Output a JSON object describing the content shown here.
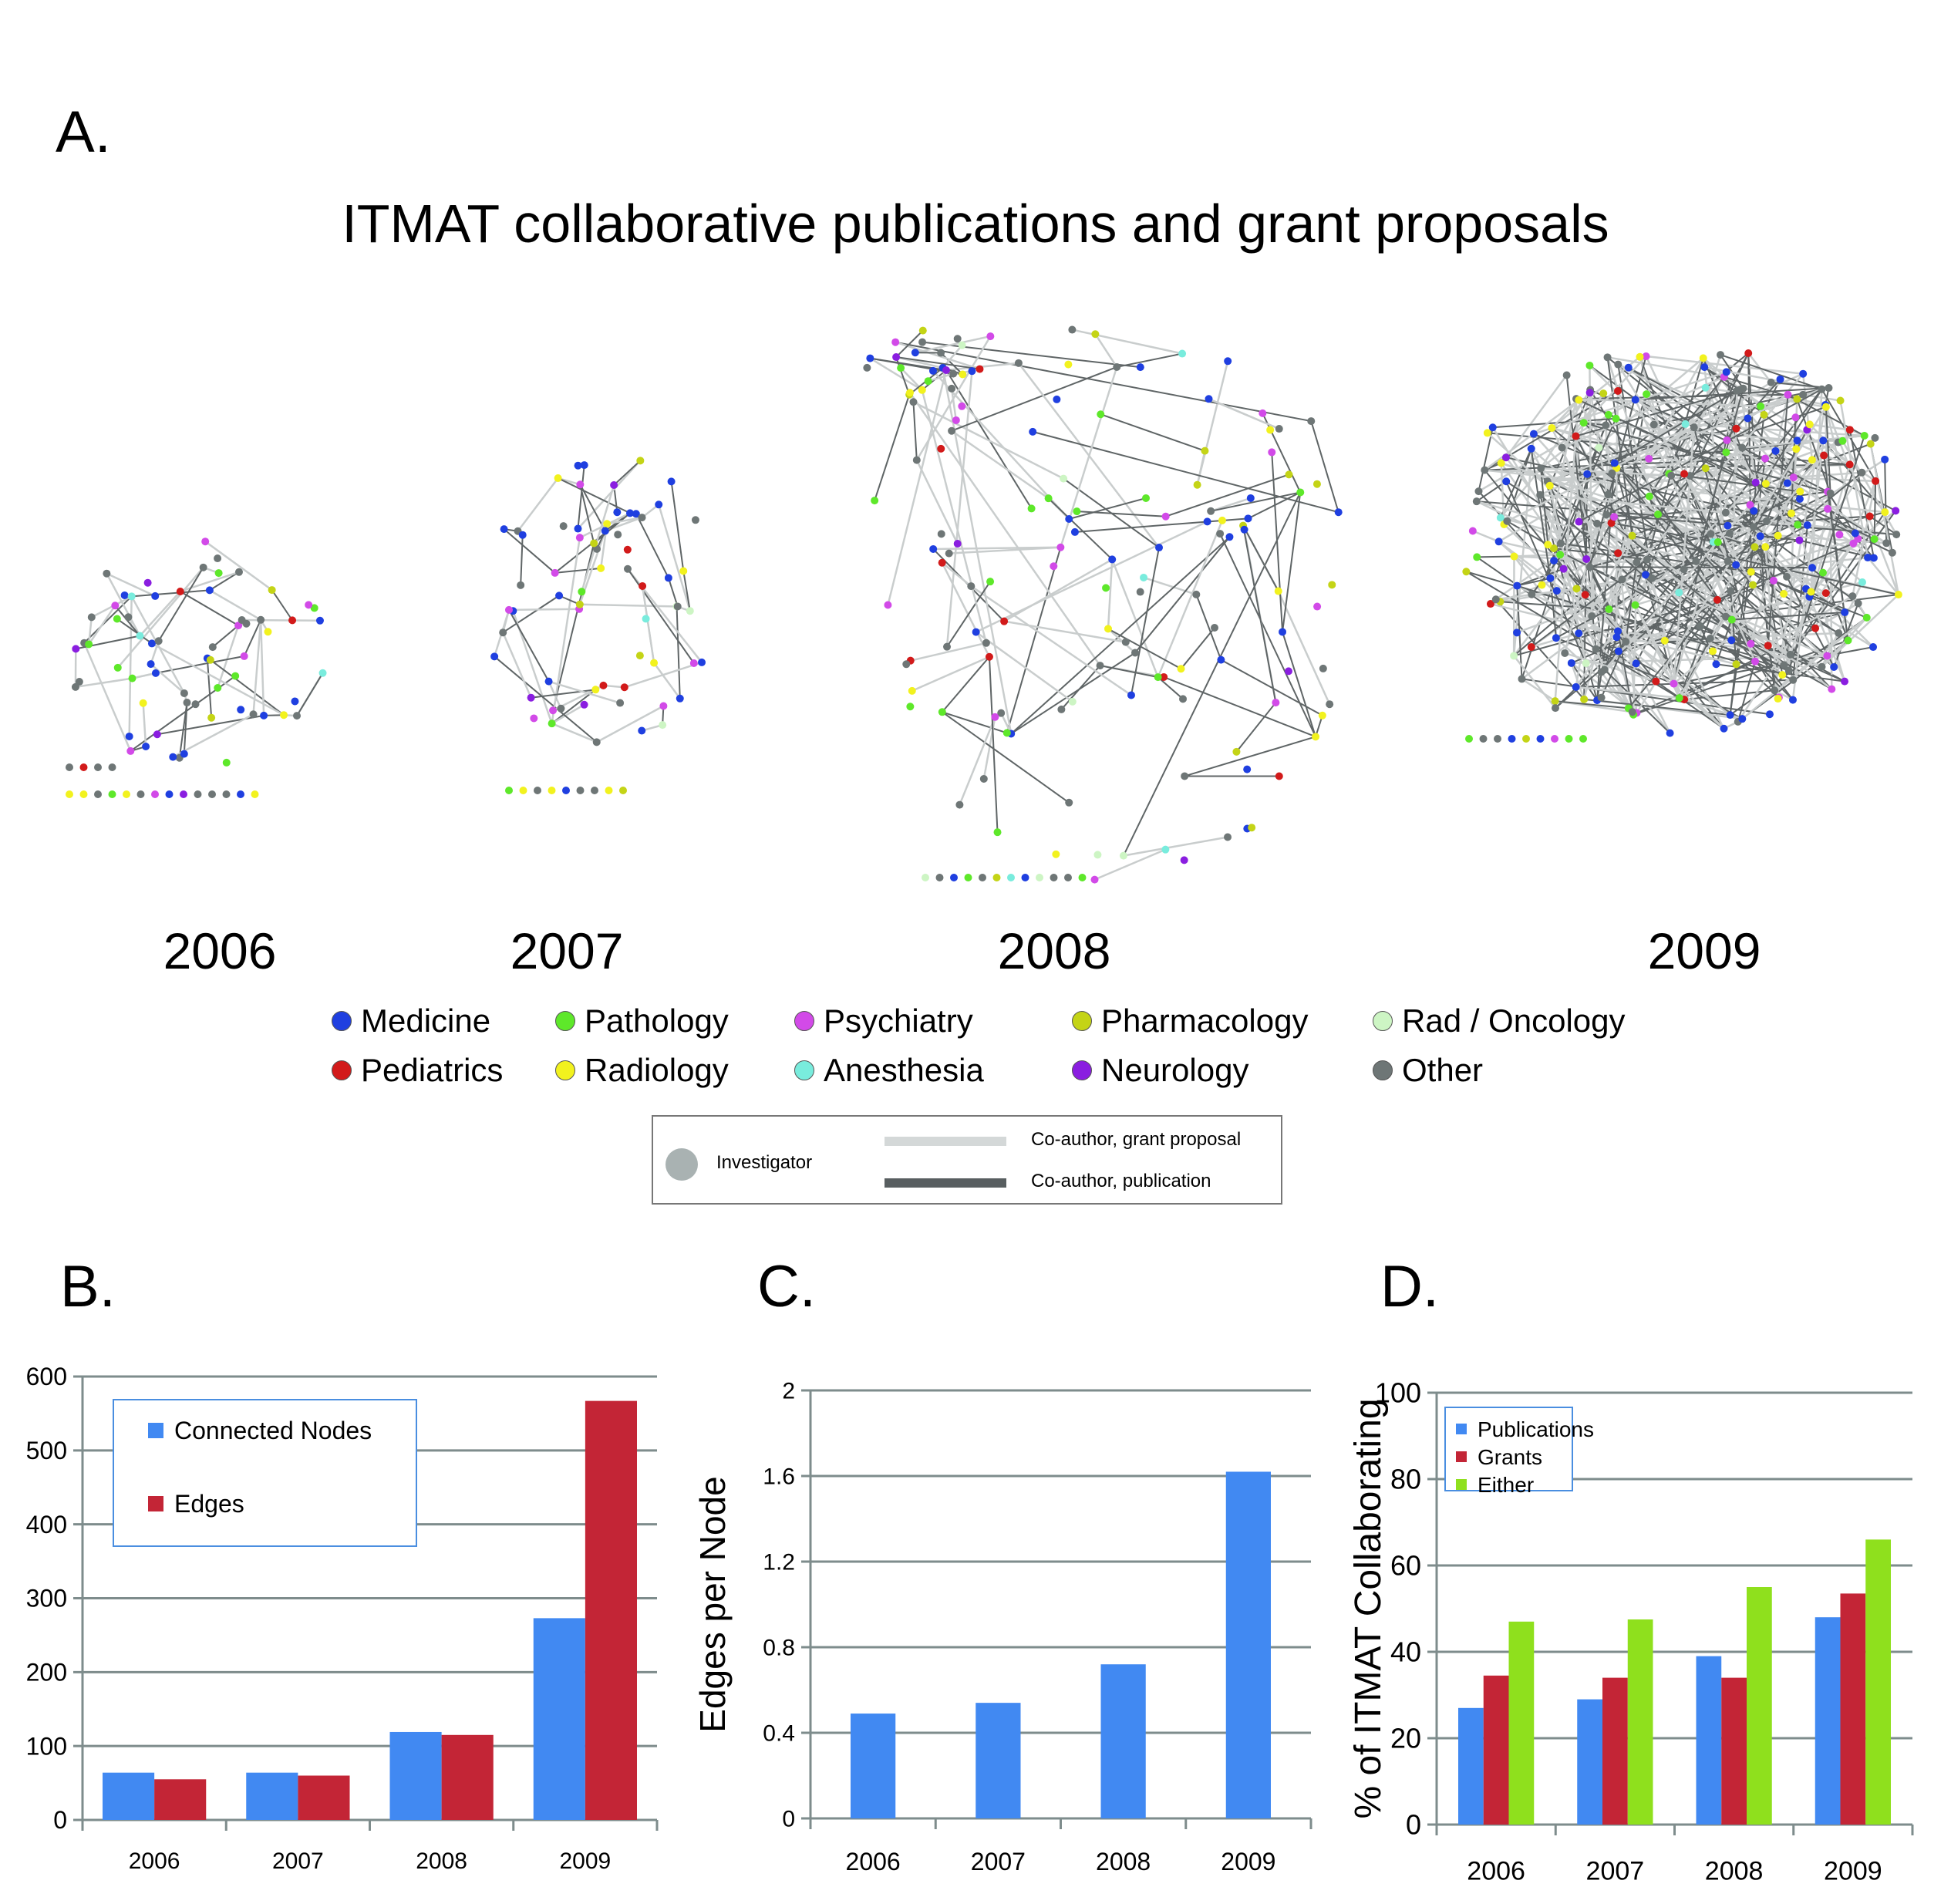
{
  "panels": {
    "a": {
      "letter": "A.",
      "title": "ITMAT collaborative publications and grant proposals",
      "years": [
        "2006",
        "2007",
        "2008",
        "2009"
      ],
      "departments": [
        {
          "name": "Medicine",
          "color": "#1f3fe0"
        },
        {
          "name": "Pathology",
          "color": "#5ee82a"
        },
        {
          "name": "Psychiatry",
          "color": "#d24ae8"
        },
        {
          "name": "Pharmacology",
          "color": "#c4d416"
        },
        {
          "name": "Rad / Oncology",
          "color": "#cdf5c4"
        },
        {
          "name": "Pediatrics",
          "color": "#d21a1a"
        },
        {
          "name": "Radiology",
          "color": "#f2f21e"
        },
        {
          "name": "Anesthesia",
          "color": "#79ecdd"
        },
        {
          "name": "Neurology",
          "color": "#8a1ee0"
        },
        {
          "name": "Other",
          "color": "#6e7676"
        }
      ],
      "edge_legend": {
        "investigator": "Investigator",
        "grant": "Co-author, grant proposal",
        "publication": "Co-author, publication",
        "grant_color": "#d4d8d8",
        "publication_color": "#585e60",
        "investigator_color": "#a9b2b2"
      }
    },
    "b": {
      "letter": "B."
    },
    "c": {
      "letter": "C."
    },
    "d": {
      "letter": "D."
    }
  },
  "colors": {
    "blue": "#4189f2",
    "red": "#c32536",
    "green": "#8fe01d",
    "grid": "#7e8c8c",
    "legend_border": "#4a8ee0"
  },
  "chart_data": [
    {
      "id": "B",
      "type": "bar",
      "title": "",
      "xlabel": "",
      "ylabel": "",
      "categories": [
        "2006",
        "2007",
        "2008",
        "2009"
      ],
      "series": [
        {
          "name": "Connected Nodes",
          "values": [
            64,
            64,
            119,
            273
          ]
        },
        {
          "name": "Edges",
          "values": [
            55,
            60,
            115,
            567
          ]
        }
      ],
      "ylim": [
        0,
        600
      ],
      "yticks": [
        "0",
        "100",
        "200",
        "300",
        "400",
        "500",
        "600"
      ],
      "grid": true,
      "legend": "top-left"
    },
    {
      "id": "C",
      "type": "bar",
      "title": "",
      "xlabel": "",
      "ylabel": "Edges per Node",
      "categories": [
        "2006",
        "2007",
        "2008",
        "2009"
      ],
      "series": [
        {
          "name": "Edges per Node",
          "values": [
            0.49,
            0.54,
            0.72,
            1.62
          ]
        }
      ],
      "ylim": [
        0,
        2
      ],
      "yticks": [
        "0",
        "0.4",
        "0.8",
        "1.2",
        "1.6",
        "2"
      ],
      "grid": true,
      "legend": "none"
    },
    {
      "id": "D",
      "type": "bar",
      "title": "",
      "xlabel": "",
      "ylabel": "% of ITMAT Collaborating",
      "categories": [
        "2006",
        "2007",
        "2008",
        "2009"
      ],
      "series": [
        {
          "name": "Publications",
          "values": [
            27,
            29,
            39,
            48
          ]
        },
        {
          "name": "Grants",
          "values": [
            34.5,
            34,
            34,
            53.5
          ]
        },
        {
          "name": "Either",
          "values": [
            47,
            47.5,
            55,
            66
          ]
        }
      ],
      "ylim": [
        0,
        100
      ],
      "yticks": [
        "0",
        "20",
        "40",
        "60",
        "80",
        "100"
      ],
      "grid": true,
      "legend": "top-left"
    }
  ]
}
